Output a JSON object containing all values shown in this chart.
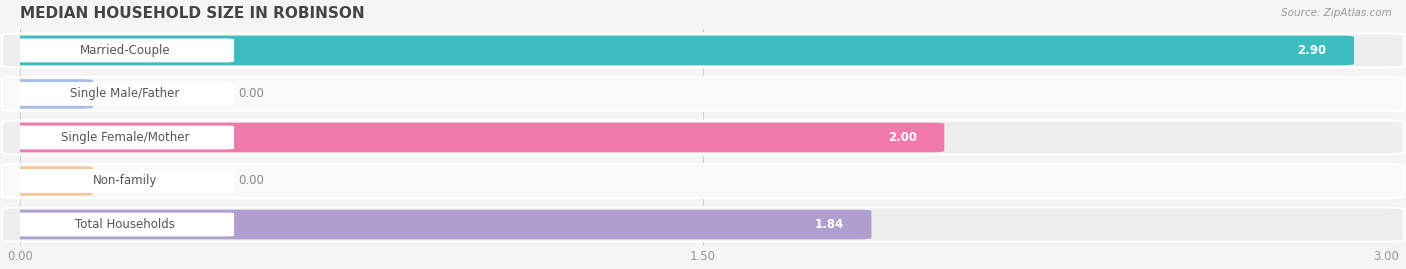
{
  "title": "MEDIAN HOUSEHOLD SIZE IN ROBINSON",
  "source": "Source: ZipAtlas.com",
  "categories": [
    "Married-Couple",
    "Single Male/Father",
    "Single Female/Mother",
    "Non-family",
    "Total Households"
  ],
  "values": [
    2.9,
    0.0,
    2.0,
    0.0,
    1.84
  ],
  "bar_colors": [
    "#3dbebe",
    "#a8bce8",
    "#f07aab",
    "#f5c89a",
    "#b09ece"
  ],
  "xlim": [
    0,
    3.0
  ],
  "xticks": [
    0.0,
    1.5,
    3.0
  ],
  "bg_color": "#f5f5f5",
  "row_bg_even": "#eeeeee",
  "row_bg_odd": "#f9f9f9",
  "title_fontsize": 11,
  "label_fontsize": 8.5,
  "value_fontsize": 8.5,
  "bar_height": 0.62
}
